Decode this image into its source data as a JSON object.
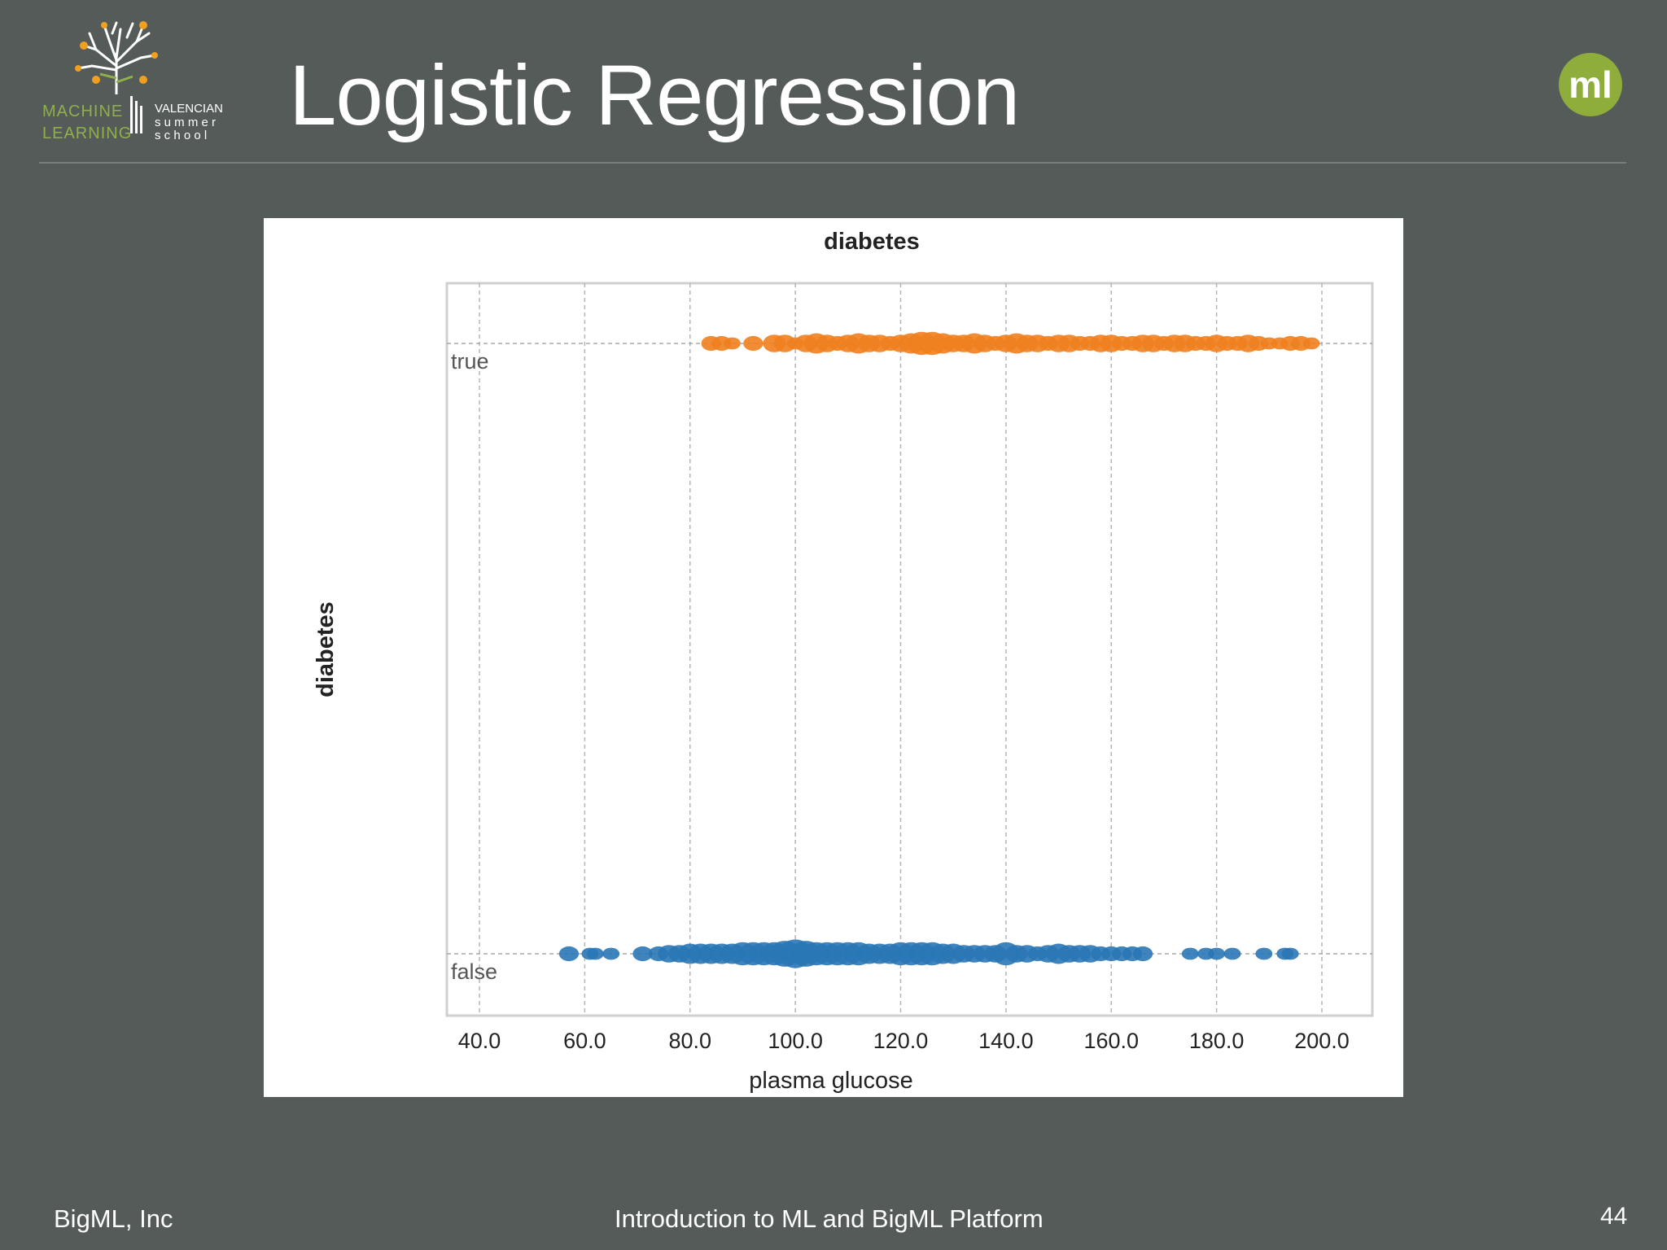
{
  "logo": {
    "left_line1": "MACHINE",
    "left_line2": "LEARNING",
    "right_line1": "VALENCIAN",
    "right_line2": "s u m m e r",
    "right_line3": "s c h o o l",
    "icon": "tree-icon"
  },
  "header": {
    "title": "Logistic Regression",
    "badge": "ml",
    "badge_color": "#8fad3a"
  },
  "footer": {
    "left": "BigML, Inc",
    "center": "Introduction to ML and BigML Platform",
    "page_number": "44"
  },
  "chart_data": {
    "type": "scatter",
    "title": "diabetes",
    "xlabel": "plasma glucose",
    "ylabel": "diabetes",
    "xlim": [
      34,
      209
    ],
    "xticks": [
      "40.0",
      "60.0",
      "80.0",
      "100.0",
      "120.0",
      "140.0",
      "160.0",
      "180.0",
      "200.0"
    ],
    "xtick_values": [
      40,
      60,
      80,
      100,
      120,
      140,
      160,
      180,
      200
    ],
    "categories": [
      "true",
      "false"
    ],
    "grid": true,
    "series": [
      {
        "name": "true",
        "color": "#f07f1e",
        "x": [
          84,
          86,
          88,
          92,
          96,
          98,
          100,
          102,
          104,
          106,
          108,
          110,
          112,
          114,
          116,
          118,
          120,
          122,
          124,
          126,
          128,
          130,
          132,
          134,
          136,
          138,
          140,
          142,
          144,
          146,
          148,
          150,
          152,
          154,
          156,
          158,
          160,
          162,
          164,
          166,
          168,
          170,
          172,
          174,
          176,
          178,
          180,
          182,
          184,
          186,
          188,
          190,
          192,
          194,
          196,
          198
        ],
        "size": [
          3,
          3,
          2,
          3,
          4,
          4,
          2,
          4,
          5,
          4,
          3,
          4,
          5,
          4,
          4,
          3,
          4,
          5,
          6,
          6,
          5,
          4,
          4,
          5,
          4,
          3,
          4,
          5,
          4,
          4,
          3,
          4,
          4,
          3,
          3,
          4,
          4,
          3,
          3,
          4,
          4,
          3,
          4,
          4,
          3,
          3,
          4,
          3,
          3,
          4,
          3,
          2,
          2,
          3,
          3,
          2
        ]
      },
      {
        "name": "false",
        "color": "#2a77b5",
        "x": [
          57,
          61,
          62,
          65,
          71,
          74,
          76,
          78,
          80,
          82,
          84,
          86,
          88,
          90,
          92,
          94,
          96,
          98,
          100,
          102,
          104,
          106,
          108,
          110,
          112,
          114,
          116,
          118,
          120,
          122,
          124,
          126,
          128,
          130,
          132,
          134,
          136,
          138,
          140,
          142,
          144,
          146,
          148,
          150,
          152,
          154,
          156,
          158,
          160,
          162,
          164,
          166,
          175,
          178,
          180,
          183,
          189,
          193,
          194
        ],
        "size": [
          3,
          2,
          2,
          2,
          3,
          3,
          4,
          4,
          5,
          5,
          5,
          5,
          5,
          6,
          6,
          6,
          6,
          7,
          8,
          7,
          6,
          6,
          6,
          6,
          6,
          5,
          5,
          5,
          6,
          6,
          6,
          6,
          5,
          5,
          4,
          4,
          4,
          4,
          6,
          4,
          4,
          3,
          4,
          5,
          4,
          4,
          4,
          3,
          3,
          3,
          3,
          3,
          2,
          2,
          2,
          2,
          2,
          2,
          2
        ]
      }
    ]
  }
}
